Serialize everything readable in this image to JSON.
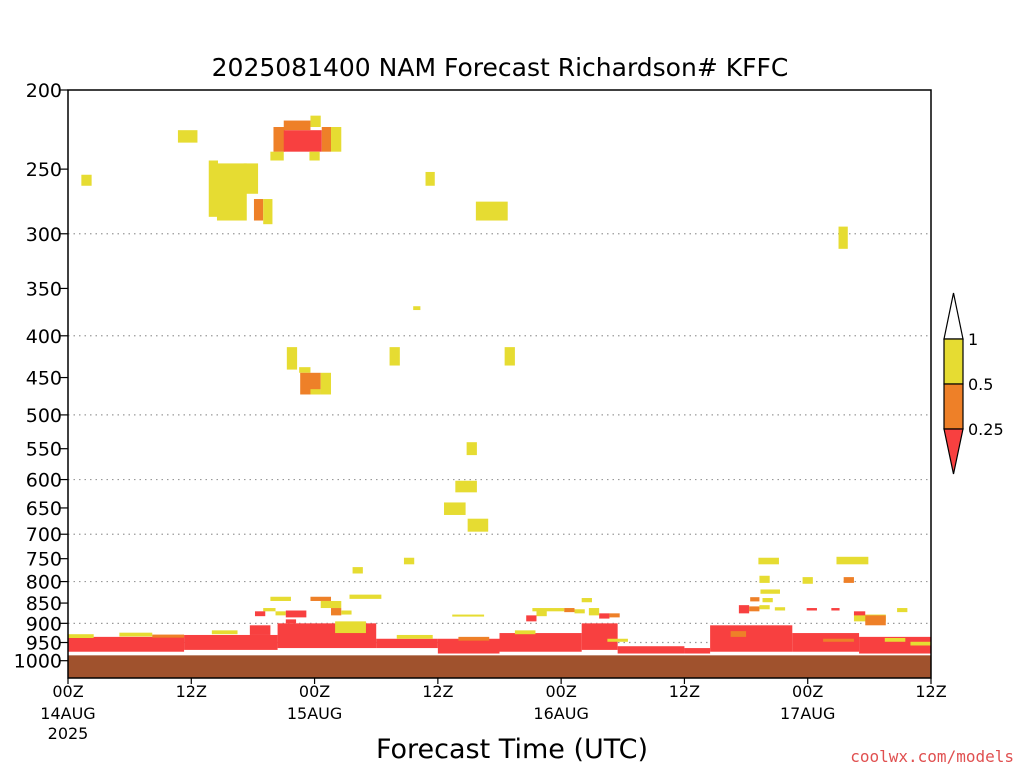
{
  "chart_data": {
    "type": "heatmap",
    "title": "2025081400 NAM Forecast Richardson# KFFC",
    "xlabel": "Forecast Time (UTC)",
    "ylabel": "",
    "credit": "coolwx.com/models",
    "x_range_hours": [
      0,
      84
    ],
    "y_range_hpa": [
      1050,
      200
    ],
    "y_scale": "log-pressure",
    "grid": "dotted horizontal",
    "y_ticks": [
      200,
      250,
      300,
      350,
      400,
      450,
      500,
      550,
      600,
      650,
      700,
      750,
      800,
      850,
      900,
      950,
      1000
    ],
    "y_tick_labels": [
      "200",
      "250",
      "300",
      "350",
      "400",
      "450",
      "500",
      "550",
      "600",
      "650",
      "700",
      "750",
      "800",
      "850",
      "900",
      "950",
      "1000"
    ],
    "grid_levels": [
      300,
      400,
      500,
      600,
      700,
      800,
      900,
      950,
      1000
    ],
    "x_ticks": [
      {
        "hour": 0,
        "label": "00Z",
        "sub": [
          "14AUG",
          "2025"
        ]
      },
      {
        "hour": 12,
        "label": "12Z",
        "sub": []
      },
      {
        "hour": 24,
        "label": "00Z",
        "sub": [
          "15AUG"
        ]
      },
      {
        "hour": 36,
        "label": "12Z",
        "sub": []
      },
      {
        "hour": 48,
        "label": "00Z",
        "sub": [
          "16AUG"
        ]
      },
      {
        "hour": 60,
        "label": "12Z",
        "sub": []
      },
      {
        "hour": 72,
        "label": "00Z",
        "sub": [
          "17AUG"
        ]
      },
      {
        "hour": 84,
        "label": "12Z",
        "sub": []
      }
    ],
    "colorbar": {
      "labels": [
        "1",
        "0.5",
        "0.25"
      ],
      "colors": {
        "low": "#f84040",
        "mid": "#ee8028",
        "high": "#e6dc32",
        "ground": "#a0522d"
      }
    },
    "ground": {
      "top_hpa": 985,
      "bottom_hpa": 1050
    },
    "cells": [
      {
        "x0": 1.3,
        "x1": 2.3,
        "p0": 254,
        "p1": 262,
        "c": "high"
      },
      {
        "x0": 10.7,
        "x1": 12.6,
        "p0": 224,
        "p1": 232,
        "c": "high"
      },
      {
        "x0": 13.7,
        "x1": 14.6,
        "p0": 244,
        "p1": 286,
        "c": "high"
      },
      {
        "x0": 14.5,
        "x1": 17.4,
        "p0": 246,
        "p1": 289,
        "c": "high"
      },
      {
        "x0": 17.1,
        "x1": 18.5,
        "p0": 246,
        "p1": 268,
        "c": "high"
      },
      {
        "x0": 18.1,
        "x1": 19.0,
        "p0": 272,
        "p1": 289,
        "c": "mid"
      },
      {
        "x0": 19.0,
        "x1": 19.9,
        "p0": 272,
        "p1": 292,
        "c": "high"
      },
      {
        "x0": 19.7,
        "x1": 21.0,
        "p0": 238,
        "p1": 244,
        "c": "high"
      },
      {
        "x0": 20.0,
        "x1": 21.1,
        "p0": 222,
        "p1": 238,
        "c": "mid"
      },
      {
        "x0": 21.0,
        "x1": 24.7,
        "p0": 224,
        "p1": 238,
        "c": "low"
      },
      {
        "x0": 21.0,
        "x1": 23.6,
        "p0": 218,
        "p1": 224,
        "c": "mid"
      },
      {
        "x0": 23.6,
        "x1": 24.6,
        "p0": 215,
        "p1": 222,
        "c": "high"
      },
      {
        "x0": 23.5,
        "x1": 24.5,
        "p0": 238,
        "p1": 244,
        "c": "high"
      },
      {
        "x0": 24.7,
        "x1": 25.6,
        "p0": 222,
        "p1": 238,
        "c": "mid"
      },
      {
        "x0": 25.6,
        "x1": 26.6,
        "p0": 222,
        "p1": 238,
        "c": "high"
      },
      {
        "x0": 34.8,
        "x1": 35.7,
        "p0": 252,
        "p1": 262,
        "c": "high"
      },
      {
        "x0": 39.7,
        "x1": 42.8,
        "p0": 274,
        "p1": 289,
        "c": "high"
      },
      {
        "x0": 75.0,
        "x1": 75.9,
        "p0": 294,
        "p1": 313,
        "c": "high"
      },
      {
        "x0": 33.6,
        "x1": 34.3,
        "p0": 368,
        "p1": 372,
        "c": "high"
      },
      {
        "x0": 21.3,
        "x1": 22.3,
        "p0": 413,
        "p1": 440,
        "c": "high"
      },
      {
        "x0": 31.3,
        "x1": 32.3,
        "p0": 413,
        "p1": 435,
        "c": "high"
      },
      {
        "x0": 42.5,
        "x1": 43.5,
        "p0": 413,
        "p1": 435,
        "c": "high"
      },
      {
        "x0": 22.5,
        "x1": 23.6,
        "p0": 437,
        "p1": 444,
        "c": "high"
      },
      {
        "x0": 22.6,
        "x1": 24.6,
        "p0": 444,
        "p1": 472,
        "c": "mid"
      },
      {
        "x0": 24.6,
        "x1": 25.6,
        "p0": 444,
        "p1": 472,
        "c": "high"
      },
      {
        "x0": 23.6,
        "x1": 24.6,
        "p0": 465,
        "p1": 472,
        "c": "high"
      },
      {
        "x0": 38.8,
        "x1": 39.8,
        "p0": 540,
        "p1": 560,
        "c": "high"
      },
      {
        "x0": 37.7,
        "x1": 39.8,
        "p0": 602,
        "p1": 622,
        "c": "high"
      },
      {
        "x0": 36.6,
        "x1": 38.7,
        "p0": 640,
        "p1": 663,
        "c": "high"
      },
      {
        "x0": 38.9,
        "x1": 40.9,
        "p0": 670,
        "p1": 695,
        "c": "high"
      },
      {
        "x0": 32.7,
        "x1": 33.7,
        "p0": 748,
        "p1": 762,
        "c": "high"
      },
      {
        "x0": 27.7,
        "x1": 28.7,
        "p0": 768,
        "p1": 782,
        "c": "high"
      },
      {
        "x0": 67.2,
        "x1": 69.2,
        "p0": 748,
        "p1": 762,
        "c": "high"
      },
      {
        "x0": 74.8,
        "x1": 77.9,
        "p0": 746,
        "p1": 762,
        "c": "high"
      },
      {
        "x0": 67.3,
        "x1": 68.3,
        "p0": 787,
        "p1": 803,
        "c": "high"
      },
      {
        "x0": 71.5,
        "x1": 72.5,
        "p0": 790,
        "p1": 805,
        "c": "high"
      },
      {
        "x0": 75.5,
        "x1": 76.5,
        "p0": 790,
        "p1": 803,
        "c": "mid"
      },
      {
        "x0": 19.7,
        "x1": 21.7,
        "p0": 835,
        "p1": 845,
        "c": "high"
      },
      {
        "x0": 23.6,
        "x1": 25.6,
        "p0": 835,
        "p1": 845,
        "c": "mid"
      },
      {
        "x0": 27.4,
        "x1": 30.5,
        "p0": 830,
        "p1": 840,
        "c": "high"
      },
      {
        "x0": 50.0,
        "x1": 51.0,
        "p0": 838,
        "p1": 848,
        "c": "high"
      },
      {
        "x0": 67.4,
        "x1": 69.3,
        "p0": 818,
        "p1": 828,
        "c": "high"
      },
      {
        "x0": 66.4,
        "x1": 67.3,
        "p0": 836,
        "p1": 846,
        "c": "mid"
      },
      {
        "x0": 67.6,
        "x1": 68.6,
        "p0": 838,
        "p1": 848,
        "c": "high"
      },
      {
        "x0": 19.0,
        "x1": 20.2,
        "p0": 862,
        "p1": 870,
        "c": "high"
      },
      {
        "x0": 18.2,
        "x1": 19.2,
        "p0": 870,
        "p1": 882,
        "c": "low"
      },
      {
        "x0": 20.2,
        "x1": 21.2,
        "p0": 870,
        "p1": 880,
        "c": "high"
      },
      {
        "x0": 21.2,
        "x1": 23.2,
        "p0": 868,
        "p1": 885,
        "c": "low"
      },
      {
        "x0": 24.6,
        "x1": 26.6,
        "p0": 845,
        "p1": 862,
        "c": "high"
      },
      {
        "x0": 25.6,
        "x1": 26.6,
        "p0": 862,
        "p1": 880,
        "c": "mid"
      },
      {
        "x0": 26.6,
        "x1": 27.6,
        "p0": 868,
        "p1": 878,
        "c": "high"
      },
      {
        "x0": 37.4,
        "x1": 40.5,
        "p0": 878,
        "p1": 883,
        "c": "high"
      },
      {
        "x0": 45.2,
        "x1": 48.3,
        "p0": 862,
        "p1": 870,
        "c": "high"
      },
      {
        "x0": 48.3,
        "x1": 49.3,
        "p0": 862,
        "p1": 872,
        "c": "mid"
      },
      {
        "x0": 49.3,
        "x1": 50.3,
        "p0": 865,
        "p1": 875,
        "c": "high"
      },
      {
        "x0": 44.6,
        "x1": 45.6,
        "p0": 880,
        "p1": 895,
        "c": "low"
      },
      {
        "x0": 45.6,
        "x1": 46.6,
        "p0": 868,
        "p1": 882,
        "c": "high"
      },
      {
        "x0": 50.7,
        "x1": 51.7,
        "p0": 862,
        "p1": 880,
        "c": "high"
      },
      {
        "x0": 51.7,
        "x1": 52.7,
        "p0": 875,
        "p1": 888,
        "c": "low"
      },
      {
        "x0": 52.7,
        "x1": 53.7,
        "p0": 875,
        "p1": 885,
        "c": "mid"
      },
      {
        "x0": 65.3,
        "x1": 66.3,
        "p0": 855,
        "p1": 875,
        "c": "low"
      },
      {
        "x0": 66.3,
        "x1": 67.3,
        "p0": 858,
        "p1": 870,
        "c": "mid"
      },
      {
        "x0": 67.3,
        "x1": 68.3,
        "p0": 855,
        "p1": 865,
        "c": "high"
      },
      {
        "x0": 68.8,
        "x1": 69.8,
        "p0": 860,
        "p1": 868,
        "c": "high"
      },
      {
        "x0": 71.9,
        "x1": 72.9,
        "p0": 862,
        "p1": 868,
        "c": "low"
      },
      {
        "x0": 74.3,
        "x1": 75.1,
        "p0": 862,
        "p1": 868,
        "c": "low"
      },
      {
        "x0": 76.5,
        "x1": 79.6,
        "p0": 878,
        "p1": 895,
        "c": "high"
      },
      {
        "x0": 76.5,
        "x1": 77.6,
        "p0": 870,
        "p1": 880,
        "c": "low"
      },
      {
        "x0": 77.6,
        "x1": 79.6,
        "p0": 880,
        "p1": 905,
        "c": "mid"
      },
      {
        "x0": 80.7,
        "x1": 81.7,
        "p0": 862,
        "p1": 872,
        "c": "high"
      },
      {
        "x0": 0.0,
        "x1": 11.3,
        "p0": 935,
        "p1": 975,
        "c": "low"
      },
      {
        "x0": 0.0,
        "x1": 2.5,
        "p0": 928,
        "p1": 938,
        "c": "high"
      },
      {
        "x0": 5.0,
        "x1": 8.2,
        "p0": 924,
        "p1": 934,
        "c": "high"
      },
      {
        "x0": 8.2,
        "x1": 11.3,
        "p0": 929,
        "p1": 937,
        "c": "mid"
      },
      {
        "x0": 11.3,
        "x1": 20.4,
        "p0": 930,
        "p1": 970,
        "c": "low"
      },
      {
        "x0": 14.0,
        "x1": 16.5,
        "p0": 918,
        "p1": 928,
        "c": "high"
      },
      {
        "x0": 17.7,
        "x1": 19.7,
        "p0": 905,
        "p1": 930,
        "c": "low"
      },
      {
        "x0": 20.4,
        "x1": 30.0,
        "p0": 900,
        "p1": 965,
        "c": "low"
      },
      {
        "x0": 21.2,
        "x1": 22.2,
        "p0": 890,
        "p1": 900,
        "c": "low"
      },
      {
        "x0": 26.0,
        "x1": 29.0,
        "p0": 895,
        "p1": 925,
        "c": "high"
      },
      {
        "x0": 30.0,
        "x1": 36.0,
        "p0": 940,
        "p1": 965,
        "c": "low"
      },
      {
        "x0": 32.0,
        "x1": 35.5,
        "p0": 930,
        "p1": 940,
        "c": "high"
      },
      {
        "x0": 36.0,
        "x1": 42.0,
        "p0": 940,
        "p1": 980,
        "c": "low"
      },
      {
        "x0": 38.0,
        "x1": 41.0,
        "p0": 935,
        "p1": 945,
        "c": "mid"
      },
      {
        "x0": 42.0,
        "x1": 50.0,
        "p0": 925,
        "p1": 975,
        "c": "low"
      },
      {
        "x0": 43.5,
        "x1": 45.5,
        "p0": 918,
        "p1": 928,
        "c": "high"
      },
      {
        "x0": 50.0,
        "x1": 53.5,
        "p0": 900,
        "p1": 970,
        "c": "low"
      },
      {
        "x0": 52.5,
        "x1": 54.5,
        "p0": 940,
        "p1": 948,
        "c": "high"
      },
      {
        "x0": 53.5,
        "x1": 60.0,
        "p0": 960,
        "p1": 980,
        "c": "low"
      },
      {
        "x0": 60.0,
        "x1": 62.5,
        "p0": 965,
        "p1": 980,
        "c": "low"
      },
      {
        "x0": 62.5,
        "x1": 70.5,
        "p0": 905,
        "p1": 975,
        "c": "low"
      },
      {
        "x0": 64.5,
        "x1": 66.0,
        "p0": 920,
        "p1": 935,
        "c": "mid"
      },
      {
        "x0": 70.5,
        "x1": 77.0,
        "p0": 925,
        "p1": 975,
        "c": "low"
      },
      {
        "x0": 73.5,
        "x1": 76.5,
        "p0": 940,
        "p1": 948,
        "c": "mid"
      },
      {
        "x0": 77.0,
        "x1": 84.0,
        "p0": 935,
        "p1": 980,
        "c": "low"
      },
      {
        "x0": 79.5,
        "x1": 81.5,
        "p0": 938,
        "p1": 948,
        "c": "high"
      },
      {
        "x0": 82.0,
        "x1": 84.0,
        "p0": 948,
        "p1": 958,
        "c": "high"
      }
    ]
  }
}
